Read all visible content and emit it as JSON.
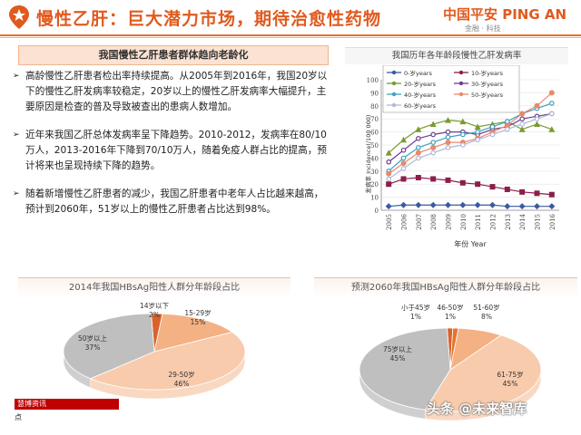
{
  "header": {
    "title": "慢性乙肝：巨大潜力市场，期待治愈性药物",
    "logo_main": "中国平安 PING AN",
    "logo_sub": "金融 · 科技",
    "accent": "#e05a1e"
  },
  "left_panel": {
    "box_title": "我国慢性乙肝患者群体趋向老龄化",
    "bullets": [
      "高龄慢性乙肝患者检出率持续提高。从2005年到2016年，我国20岁以下的慢性乙肝发病率较稳定，20岁以上的慢性乙肝发病率大幅提升，主要原因是检查的普及导致被查出的患病人数增加。",
      "近年来我国乙肝总体发病率呈下降趋势。2010-2012，发病率在80/10万人，2013-2016年下降到70/10万人，随着免疫人群占比的提高，预计将来也呈现持续下降的趋势。",
      "随着新增慢性乙肝患者的减少，我国乙肝患者中老年人占比越来越高，预计到2060年，51岁以上的慢性乙肝患者占比达到98%。"
    ]
  },
  "chart_data": [
    {
      "type": "line",
      "title": "我国历年各年龄段慢性乙肝发病率",
      "xlabel": "年份 Year",
      "ylabel": "发病率 Incidence(/100 000)",
      "x": [
        "2005",
        "2006",
        "2007",
        "2008",
        "2009",
        "2010",
        "2011",
        "2012",
        "2013",
        "2014",
        "2015",
        "2016"
      ],
      "ylim": [
        0,
        100
      ],
      "yticks": [
        "0",
        "10",
        "20",
        "30",
        "40",
        "50",
        "60",
        "70",
        "80",
        "90",
        "100"
      ],
      "series": [
        {
          "name": "0-岁years",
          "color": "#3a5ba0",
          "values": [
            3,
            4,
            4,
            4,
            4,
            4,
            4,
            4,
            3,
            3,
            3,
            3
          ]
        },
        {
          "name": "10-岁years",
          "color": "#8b1e4a",
          "values": [
            20,
            24,
            25,
            24,
            23,
            21,
            20,
            18,
            16,
            14,
            13,
            12
          ]
        },
        {
          "name": "20-岁years",
          "color": "#7a9a2e",
          "values": [
            44,
            54,
            62,
            66,
            69,
            68,
            64,
            66,
            68,
            62,
            66,
            62
          ]
        },
        {
          "name": "30-岁years",
          "color": "#6b3f8e",
          "values": [
            37,
            46,
            55,
            58,
            60,
            60,
            58,
            62,
            64,
            70,
            72,
            74
          ]
        },
        {
          "name": "40-岁years",
          "color": "#3fa0c0",
          "values": [
            30,
            40,
            48,
            52,
            56,
            58,
            60,
            64,
            68,
            74,
            78,
            82
          ]
        },
        {
          "name": "50-岁years",
          "color": "#e8896a",
          "values": [
            28,
            36,
            44,
            48,
            52,
            52,
            55,
            60,
            65,
            74,
            80,
            90
          ]
        },
        {
          "name": "60-岁years",
          "color": "#b0b8d8",
          "values": [
            24,
            32,
            40,
            44,
            48,
            50,
            54,
            58,
            62,
            66,
            70,
            74
          ]
        }
      ],
      "legend_position": "top"
    },
    {
      "type": "pie",
      "title": "2014年我国HBsAg阳性人群分年龄段占比",
      "categories": [
        "14岁以下",
        "15-29岁",
        "29-50岁",
        "50岁以上"
      ],
      "values": [
        2,
        15,
        46,
        37
      ],
      "labels": [
        "2%",
        "15%",
        "46%",
        "37%"
      ],
      "colors": [
        "#d9622b",
        "#f4b183",
        "#f8cbad",
        "#bfbfbf"
      ]
    },
    {
      "type": "pie",
      "title": "预测2060年我国HBsAg阳性人群分年龄段占比",
      "categories": [
        "小于45岁",
        "46-50岁",
        "51-60岁",
        "61-75岁",
        "75岁以上"
      ],
      "values": [
        1,
        1,
        8,
        45,
        45
      ],
      "labels": [
        "1%",
        "1%",
        "8%",
        "45%",
        "45%"
      ],
      "colors": [
        "#d9622b",
        "#e8722c",
        "#f4b183",
        "#f8cbad",
        "#bfbfbf"
      ]
    }
  ],
  "watermarks": {
    "left_tag": "慧博资讯",
    "left_line": "点",
    "right": "头条 @未来智库"
  }
}
